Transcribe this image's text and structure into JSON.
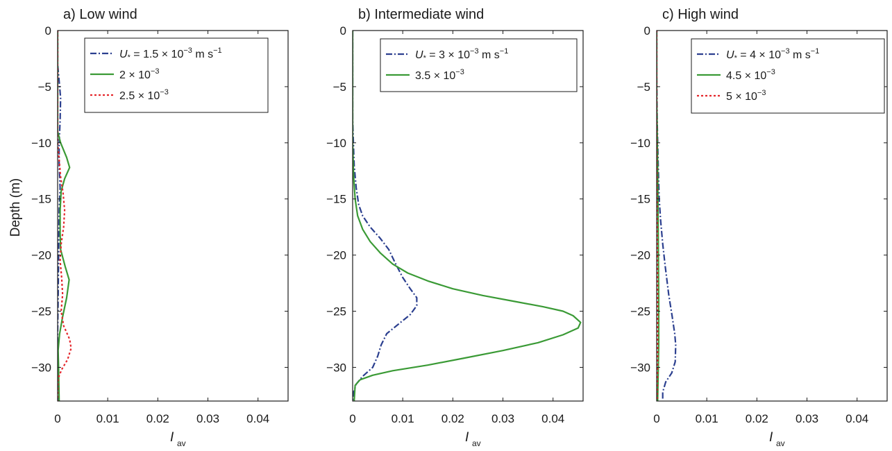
{
  "figure": {
    "ylabel": "Depth (m)"
  },
  "chart_data": [
    {
      "type": "line",
      "title": "a) Low wind",
      "xlabel_main": "I",
      "xlabel_sub": "av",
      "ylabel": "Depth (m)",
      "xlim": [
        0,
        0.046
      ],
      "ylim": [
        -33,
        0
      ],
      "xticks": [
        0,
        0.01,
        0.02,
        0.03,
        0.04
      ],
      "xtick_labels": [
        "0",
        "0.01",
        "0.02",
        "0.03",
        "0.04"
      ],
      "yticks": [
        0,
        -5,
        -10,
        -15,
        -20,
        -25,
        -30
      ],
      "ytick_labels": [
        "0",
        "−5",
        "−10",
        "−15",
        "−20",
        "−25",
        "−30"
      ],
      "legend": {
        "placement": "top-right",
        "entries": [
          {
            "pre": "U",
            "sub": "*",
            "text": " = 1.5 × 10",
            "sup": "−3",
            "post": " m s",
            "sup2": "−1"
          },
          {
            "pre": "",
            "sub": "",
            "text": "2 × 10",
            "sup": "−3",
            "post": "",
            "sup2": ""
          },
          {
            "pre": "",
            "sub": "",
            "text": "2.5 × 10",
            "sup": "−3",
            "post": "",
            "sup2": ""
          }
        ]
      },
      "series": [
        {
          "color": "#2b3f8f",
          "dash": "dashdot",
          "points": [
            [
              0,
              0
            ],
            [
              0,
              -3
            ],
            [
              0.0003,
              -4.5
            ],
            [
              0.0006,
              -6
            ],
            [
              0.0005,
              -8
            ],
            [
              0.0003,
              -10
            ],
            [
              0.0003,
              -12
            ],
            [
              0.0005,
              -14
            ],
            [
              0.0003,
              -16
            ],
            [
              0.0002,
              -20
            ],
            [
              0.0001,
              -24
            ],
            [
              0,
              -27
            ],
            [
              0,
              -33
            ]
          ]
        },
        {
          "color": "#3a9a35",
          "dash": "solid",
          "points": [
            [
              0,
              0
            ],
            [
              0,
              -9
            ],
            [
              0.0006,
              -10
            ],
            [
              0.0018,
              -11.3
            ],
            [
              0.0024,
              -12.2
            ],
            [
              0.0014,
              -13.2
            ],
            [
              0.0007,
              -14.3
            ],
            [
              0.0005,
              -16
            ],
            [
              0.0005,
              -18
            ],
            [
              0.0006,
              -19.5
            ],
            [
              0.0015,
              -21
            ],
            [
              0.0023,
              -22.2
            ],
            [
              0.0018,
              -23.8
            ],
            [
              0.001,
              -25.5
            ],
            [
              0.0004,
              -27
            ],
            [
              0.0001,
              -28.5
            ],
            [
              0.0002,
              -30
            ],
            [
              0.0003,
              -33
            ]
          ]
        },
        {
          "color": "#e4262b",
          "dash": "dot",
          "points": [
            [
              0,
              0
            ],
            [
              0,
              -10
            ],
            [
              0.0003,
              -11.5
            ],
            [
              0.0006,
              -13
            ],
            [
              0.0011,
              -14.5
            ],
            [
              0.0014,
              -16
            ],
            [
              0.0012,
              -17.5
            ],
            [
              0.0007,
              -19
            ],
            [
              0.0005,
              -20.5
            ],
            [
              0.0008,
              -22
            ],
            [
              0.001,
              -23.5
            ],
            [
              0.0007,
              -25
            ],
            [
              0.0012,
              -26.3
            ],
            [
              0.0024,
              -27.5
            ],
            [
              0.0027,
              -28.3
            ],
            [
              0.002,
              -29.3
            ],
            [
              0.0008,
              -30.2
            ],
            [
              0.0001,
              -31
            ],
            [
              0,
              -33
            ]
          ]
        }
      ]
    },
    {
      "type": "line",
      "title": "b) Intermediate wind",
      "xlabel_main": "I",
      "xlabel_sub": "av",
      "ylabel": "",
      "xlim": [
        0,
        0.046
      ],
      "ylim": [
        -33,
        0
      ],
      "xticks": [
        0,
        0.01,
        0.02,
        0.03,
        0.04
      ],
      "xtick_labels": [
        "0",
        "0.01",
        "0.02",
        "0.03",
        "0.04"
      ],
      "yticks": [
        0,
        -5,
        -10,
        -15,
        -20,
        -25,
        -30
      ],
      "ytick_labels": [
        "0",
        "−5",
        "−10",
        "−15",
        "−20",
        "−25",
        "−30"
      ],
      "legend": {
        "placement": "top-right",
        "entries": [
          {
            "pre": "U",
            "sub": "*",
            "text": " = 3 × 10",
            "sup": "−3",
            "post": " m s",
            "sup2": "−1"
          },
          {
            "pre": "",
            "sub": "",
            "text": "3.5 × 10",
            "sup": "−3",
            "post": "",
            "sup2": ""
          }
        ]
      },
      "series": [
        {
          "color": "#2b3f8f",
          "dash": "dashdot",
          "points": [
            [
              0,
              0
            ],
            [
              0,
              -8
            ],
            [
              0.0003,
              -12
            ],
            [
              0.0007,
              -14
            ],
            [
              0.0012,
              -15.5
            ],
            [
              0.002,
              -16.5
            ],
            [
              0.0035,
              -17.5
            ],
            [
              0.0055,
              -18.5
            ],
            [
              0.0072,
              -19.5
            ],
            [
              0.0085,
              -20.7
            ],
            [
              0.01,
              -22
            ],
            [
              0.0115,
              -23
            ],
            [
              0.0128,
              -23.8
            ],
            [
              0.0128,
              -24.5
            ],
            [
              0.0115,
              -25.3
            ],
            [
              0.009,
              -26.2
            ],
            [
              0.0068,
              -27
            ],
            [
              0.0057,
              -28
            ],
            [
              0.005,
              -29
            ],
            [
              0.004,
              -30
            ],
            [
              0.002,
              -30.8
            ],
            [
              0.0007,
              -31.5
            ],
            [
              0.0002,
              -32.2
            ],
            [
              0,
              -33
            ]
          ]
        },
        {
          "color": "#3a9a35",
          "dash": "solid",
          "points": [
            [
              0,
              0
            ],
            [
              0,
              -10
            ],
            [
              0.0002,
              -13
            ],
            [
              0.0005,
              -15
            ],
            [
              0.001,
              -16.5
            ],
            [
              0.002,
              -17.7
            ],
            [
              0.0035,
              -18.8
            ],
            [
              0.0055,
              -19.8
            ],
            [
              0.008,
              -20.8
            ],
            [
              0.011,
              -21.6
            ],
            [
              0.015,
              -22.3
            ],
            [
              0.02,
              -23
            ],
            [
              0.026,
              -23.6
            ],
            [
              0.032,
              -24.1
            ],
            [
              0.038,
              -24.6
            ],
            [
              0.042,
              -25
            ],
            [
              0.044,
              -25.4
            ],
            [
              0.0455,
              -26
            ],
            [
              0.045,
              -26.5
            ],
            [
              0.042,
              -27.1
            ],
            [
              0.037,
              -27.8
            ],
            [
              0.03,
              -28.5
            ],
            [
              0.022,
              -29.2
            ],
            [
              0.015,
              -29.8
            ],
            [
              0.008,
              -30.3
            ],
            [
              0.004,
              -30.7
            ],
            [
              0.0015,
              -31.1
            ],
            [
              0.0005,
              -31.6
            ],
            [
              0.0003,
              -33
            ]
          ]
        }
      ]
    },
    {
      "type": "line",
      "title": "c) High wind",
      "xlabel_main": "I",
      "xlabel_sub": "av",
      "ylabel": "",
      "xlim": [
        0,
        0.046
      ],
      "ylim": [
        -33,
        0
      ],
      "xticks": [
        0,
        0.01,
        0.02,
        0.03,
        0.04
      ],
      "xtick_labels": [
        "0",
        "0.01",
        "0.02",
        "0.03",
        "0.04"
      ],
      "yticks": [
        0,
        -5,
        -10,
        -15,
        -20,
        -25,
        -30
      ],
      "ytick_labels": [
        "0",
        "−5",
        "−10",
        "−15",
        "−20",
        "−25",
        "−30"
      ],
      "legend": {
        "placement": "top-right",
        "entries": [
          {
            "pre": "U",
            "sub": "*",
            "text": " = 4 × 10",
            "sup": "−3",
            "post": " m s",
            "sup2": "−1"
          },
          {
            "pre": "",
            "sub": "",
            "text": "4.5 × 10",
            "sup": "−3",
            "post": "",
            "sup2": ""
          },
          {
            "pre": "",
            "sub": "",
            "text": "5 × 10",
            "sup": "−3",
            "post": "",
            "sup2": ""
          }
        ]
      },
      "series": [
        {
          "color": "#2b3f8f",
          "dash": "dashdot",
          "points": [
            [
              0,
              0
            ],
            [
              0,
              -4
            ],
            [
              0.0001,
              -8
            ],
            [
              0.0003,
              -12
            ],
            [
              0.0005,
              -15
            ],
            [
              0.0008,
              -17
            ],
            [
              0.0012,
              -19
            ],
            [
              0.0017,
              -21
            ],
            [
              0.0024,
              -23.5
            ],
            [
              0.0031,
              -25.5
            ],
            [
              0.0036,
              -27
            ],
            [
              0.0038,
              -28
            ],
            [
              0.0037,
              -29.5
            ],
            [
              0.003,
              -30.5
            ],
            [
              0.0018,
              -31.3
            ],
            [
              0.0012,
              -32.2
            ],
            [
              0.0012,
              -33
            ]
          ]
        },
        {
          "color": "#3a9a35",
          "dash": "solid",
          "points": [
            [
              0,
              0
            ],
            [
              0,
              -6
            ],
            [
              0.0002,
              -12
            ],
            [
              0.0003,
              -18
            ],
            [
              0.0004,
              -24
            ],
            [
              0.0004,
              -28
            ],
            [
              0.0002,
              -33
            ]
          ]
        },
        {
          "color": "#e4262b",
          "dash": "dot",
          "points": [
            [
              0,
              0
            ],
            [
              0,
              -8
            ],
            [
              0.0001,
              -16
            ],
            [
              0.0002,
              -24
            ],
            [
              0.0002,
              -29
            ],
            [
              0.0001,
              -33
            ]
          ]
        }
      ]
    }
  ]
}
